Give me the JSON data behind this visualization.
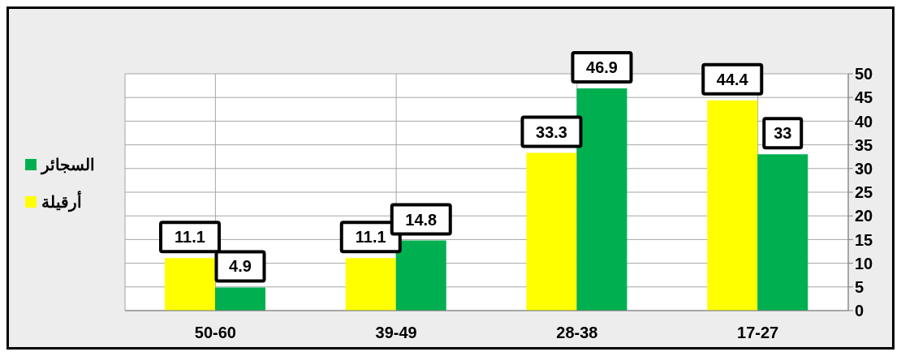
{
  "chart_data": {
    "type": "bar",
    "categories": [
      "50-60",
      "39-49",
      "28-38",
      "17-27"
    ],
    "series": [
      {
        "name": "أرقيلة",
        "color": "#ffff00",
        "values": [
          11.1,
          11.1,
          33.3,
          44.4
        ]
      },
      {
        "name": "السجائر",
        "color": "#00b050",
        "values": [
          4.9,
          14.8,
          46.9,
          33
        ]
      }
    ],
    "ylim": [
      0,
      50
    ],
    "yticks": [
      0,
      5,
      10,
      15,
      20,
      25,
      30,
      35,
      40,
      45,
      50
    ],
    "grid": true,
    "legend": "left",
    "data_labels": true
  }
}
